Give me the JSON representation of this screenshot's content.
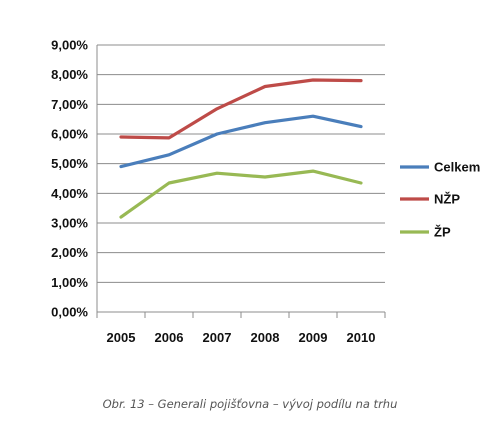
{
  "caption": "Obr. 13 – Generali pojišťovna – vývoj podílu na trhu",
  "chart_data": {
    "type": "line",
    "categories": [
      "2005",
      "2006",
      "2007",
      "2008",
      "2009",
      "2010"
    ],
    "ylim": [
      0,
      9
    ],
    "ytick_values": [
      0,
      1,
      2,
      3,
      4,
      5,
      6,
      7,
      8,
      9
    ],
    "ytick_labels": [
      "0,00%",
      "1,00%",
      "2,00%",
      "3,00%",
      "4,00%",
      "5,00%",
      "6,00%",
      "7,00%",
      "8,00%",
      "9,00%"
    ],
    "grid": "horizontal",
    "legend_position": "right",
    "series": [
      {
        "name": "Celkem",
        "color": "#4A7EBB",
        "values": [
          4.9,
          5.3,
          6.0,
          6.38,
          6.6,
          6.25
        ]
      },
      {
        "name": "NŽP",
        "color": "#BE4B48",
        "values": [
          5.9,
          5.87,
          6.85,
          7.6,
          7.82,
          7.8
        ]
      },
      {
        "name": "ŽP",
        "color": "#98B954",
        "values": [
          3.2,
          4.35,
          4.68,
          4.55,
          4.75,
          4.35
        ]
      }
    ]
  }
}
